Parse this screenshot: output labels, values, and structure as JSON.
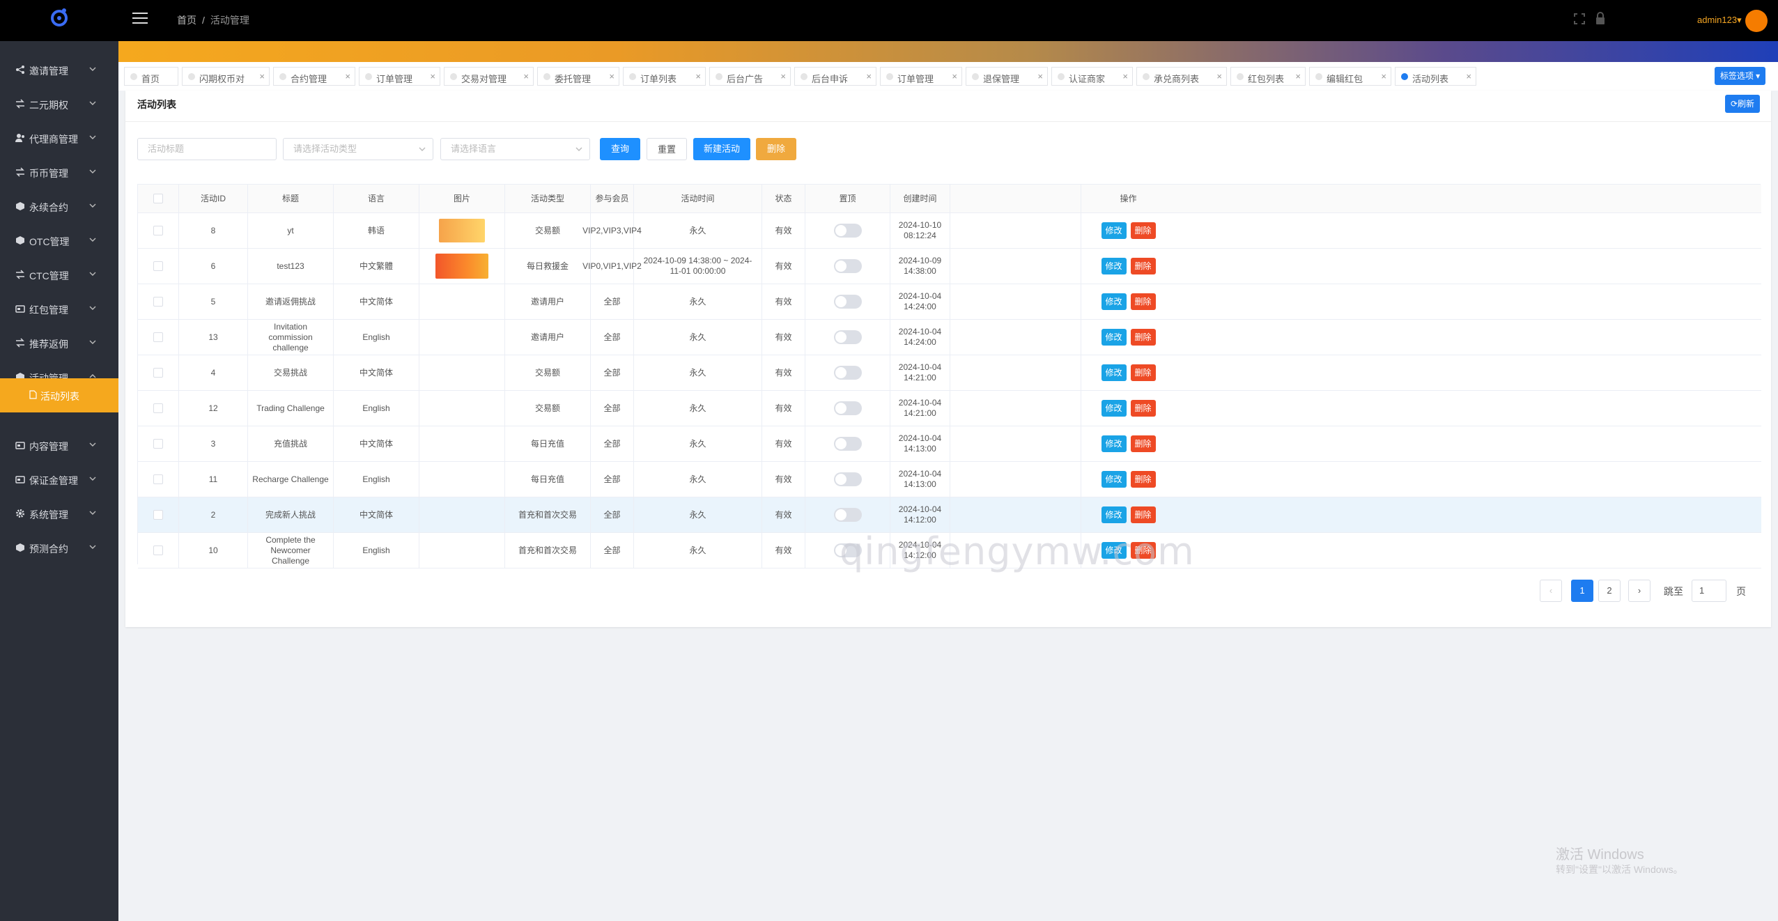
{
  "header": {
    "breadcrumb_home": "首页",
    "breadcrumb_sep": "/",
    "breadcrumb_current": "活动管理",
    "username": "admin123▾"
  },
  "sidebar": {
    "items": [
      {
        "label": "邀请管理",
        "icon": "share-icon"
      },
      {
        "label": "二元期权",
        "icon": "swap-icon"
      },
      {
        "label": "代理商管理",
        "icon": "users-icon"
      },
      {
        "label": "币币管理",
        "icon": "swap-icon"
      },
      {
        "label": "永续合约",
        "icon": "cube-icon"
      },
      {
        "label": "OTC管理",
        "icon": "cube-icon"
      },
      {
        "label": "CTC管理",
        "icon": "swap-icon"
      },
      {
        "label": "红包管理",
        "icon": "card-icon"
      },
      {
        "label": "推荐返佣",
        "icon": "swap-icon"
      },
      {
        "label": "活动管理",
        "icon": "cube-icon"
      },
      {
        "label": "内容管理",
        "icon": "card-icon"
      },
      {
        "label": "保证金管理",
        "icon": "card-icon"
      },
      {
        "label": "系统管理",
        "icon": "gear-icon"
      },
      {
        "label": "预测合约",
        "icon": "cube-icon"
      }
    ],
    "sub_item": "活动列表"
  },
  "tabs": [
    {
      "label": "首页",
      "closable": false
    },
    {
      "label": "闪期权币对",
      "closable": true
    },
    {
      "label": "合约管理",
      "closable": true
    },
    {
      "label": "订单管理",
      "closable": true
    },
    {
      "label": "交易对管理",
      "closable": true
    },
    {
      "label": "委托管理",
      "closable": true
    },
    {
      "label": "订单列表",
      "closable": true
    },
    {
      "label": "后台广告",
      "closable": true
    },
    {
      "label": "后台申诉",
      "closable": true
    },
    {
      "label": "订单管理",
      "closable": true
    },
    {
      "label": "退保管理",
      "closable": true
    },
    {
      "label": "认证商家",
      "closable": true
    },
    {
      "label": "承兑商列表",
      "closable": true
    },
    {
      "label": "红包列表",
      "closable": true
    },
    {
      "label": "编辑红包",
      "closable": true
    },
    {
      "label": "活动列表",
      "closable": true,
      "active": true
    }
  ],
  "tab_close": "×",
  "tab_options": "标签选项 ▾",
  "card": {
    "title": "活动列表",
    "refresh": "⟳刷新"
  },
  "filters": {
    "title_placeholder": "活动标题",
    "type_placeholder": "请选择活动类型",
    "lang_placeholder": "请选择语言",
    "search": "查询",
    "reset": "重置",
    "new": "新建活动",
    "delete": "删除"
  },
  "table": {
    "headers": [
      "",
      "活动ID",
      "标题",
      "语言",
      "图片",
      "活动类型",
      "参与会员",
      "活动时间",
      "状态",
      "置顶",
      "创建时间",
      "操作"
    ],
    "edit_label": "修改",
    "delete_label": "删除",
    "rows": [
      {
        "id": "8",
        "title": "yt",
        "lang": "韩语",
        "image": "yellow",
        "type": "交易额",
        "members": "VIP2,VIP3,VIP4",
        "time": "永久",
        "status": "有效",
        "created": "2024-10-10 08:12:24"
      },
      {
        "id": "6",
        "title": "test123",
        "lang": "中文繁體",
        "image": "orange",
        "type": "每日救援金",
        "members": "VIP0,VIP1,VIP2",
        "time": "2024-10-09 14:38:00 ~ 2024-11-01 00:00:00",
        "status": "有效",
        "created": "2024-10-09 14:38:00"
      },
      {
        "id": "5",
        "title": "邀请返佣挑战",
        "lang": "中文简体",
        "image": "",
        "type": "邀请用户",
        "members": "全部",
        "time": "永久",
        "status": "有效",
        "created": "2024-10-04 14:24:00"
      },
      {
        "id": "13",
        "title": "Invitation commission challenge",
        "lang": "English",
        "image": "",
        "type": "邀请用户",
        "members": "全部",
        "time": "永久",
        "status": "有效",
        "created": "2024-10-04 14:24:00"
      },
      {
        "id": "4",
        "title": "交易挑战",
        "lang": "中文简体",
        "image": "",
        "type": "交易额",
        "members": "全部",
        "time": "永久",
        "status": "有效",
        "created": "2024-10-04 14:21:00"
      },
      {
        "id": "12",
        "title": "Trading Challenge",
        "lang": "English",
        "image": "",
        "type": "交易额",
        "members": "全部",
        "time": "永久",
        "status": "有效",
        "created": "2024-10-04 14:21:00"
      },
      {
        "id": "3",
        "title": "充值挑战",
        "lang": "中文简体",
        "image": "",
        "type": "每日充值",
        "members": "全部",
        "time": "永久",
        "status": "有效",
        "created": "2024-10-04 14:13:00"
      },
      {
        "id": "11",
        "title": "Recharge Challenge",
        "lang": "English",
        "image": "",
        "type": "每日充值",
        "members": "全部",
        "time": "永久",
        "status": "有效",
        "created": "2024-10-04 14:13:00"
      },
      {
        "id": "2",
        "title": "完成新人挑战",
        "lang": "中文简体",
        "image": "",
        "type": "首充和首次交易",
        "members": "全部",
        "time": "永久",
        "status": "有效",
        "created": "2024-10-04 14:12:00"
      },
      {
        "id": "10",
        "title": "Complete the Newcomer Challenge",
        "lang": "English",
        "image": "",
        "type": "首充和首次交易",
        "members": "全部",
        "time": "永久",
        "status": "有效",
        "created": "2024-10-04 14:12:00"
      }
    ]
  },
  "pagination": {
    "prev": "‹",
    "next": "›",
    "pages": [
      "1",
      "2"
    ],
    "jump_label": "跳至",
    "jump_value": "1",
    "page_label": "页"
  },
  "watermark": {
    "center": "qingfengymw.com",
    "win_line1": "激活 Windows",
    "win_line2": "转到\"设置\"以激活 Windows。"
  },
  "colors": {
    "primary": "#1e7cf0",
    "accent": "#f5a81e",
    "danger": "#ee4a25",
    "sidebar": "#2b2f38"
  }
}
